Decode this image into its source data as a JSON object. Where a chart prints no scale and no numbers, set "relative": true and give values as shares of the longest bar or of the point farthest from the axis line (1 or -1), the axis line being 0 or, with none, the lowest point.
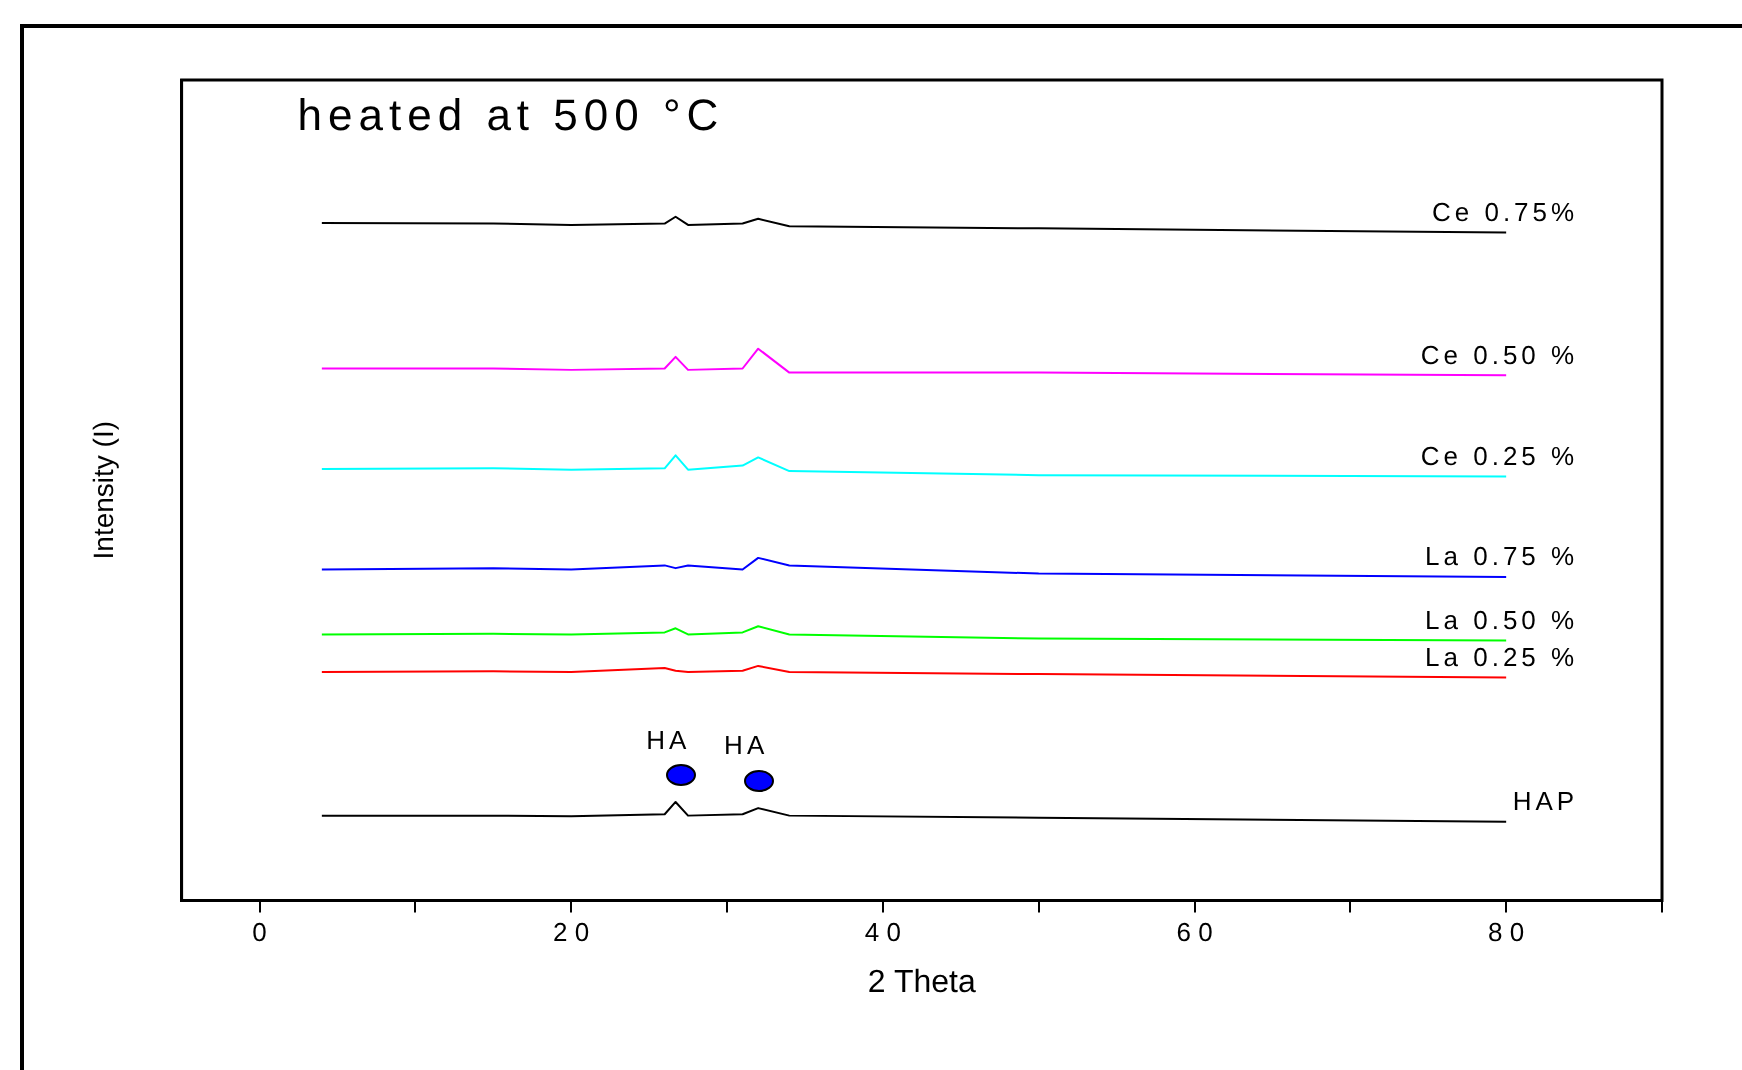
{
  "chart_data": {
    "type": "line",
    "title": "heated at 500 °C",
    "xlabel": "2 Theta",
    "ylabel": "Intensity (I)",
    "relative": true,
    "grid": false,
    "legend": false,
    "marker": "none",
    "line_style": "solid",
    "xlim": [
      -5,
      90
    ],
    "xticks": [
      0,
      {
        "value": 10,
        "label": null
      },
      20,
      {
        "value": 30,
        "label": null
      },
      40,
      {
        "value": 50,
        "label": null
      },
      60,
      {
        "value": 70,
        "label": null
      },
      80,
      {
        "value": 90,
        "label": null
      }
    ],
    "x": [
      4,
      15,
      20,
      26,
      26.7,
      27.5,
      31,
      32,
      34,
      50,
      80
    ],
    "series": [
      {
        "name": "Ce 0.75%",
        "color": "#000000",
        "values": [
          0.991,
          0.99,
          0.988,
          0.99,
          1.0,
          0.988,
          0.99,
          0.997,
          0.986,
          0.983,
          0.977
        ]
      },
      {
        "name": "Ce 0.50 %",
        "color": "#ff00ff",
        "values": [
          0.778,
          0.778,
          0.776,
          0.778,
          0.795,
          0.776,
          0.778,
          0.807,
          0.772,
          0.772,
          0.768
        ]
      },
      {
        "name": "Ce 0.25 %",
        "color": "#00ffff",
        "values": [
          0.631,
          0.632,
          0.63,
          0.632,
          0.651,
          0.63,
          0.636,
          0.648,
          0.628,
          0.622,
          0.62
        ]
      },
      {
        "name": "La 0.75 %",
        "color": "#0000ff",
        "values": [
          0.484,
          0.486,
          0.484,
          0.49,
          0.486,
          0.49,
          0.484,
          0.501,
          0.49,
          0.478,
          0.473
        ]
      },
      {
        "name": "La 0.50 %",
        "color": "#00ff00",
        "values": [
          0.389,
          0.39,
          0.389,
          0.392,
          0.398,
          0.389,
          0.392,
          0.401,
          0.389,
          0.383,
          0.38
        ]
      },
      {
        "name": "La 0.25 %",
        "color": "#ff0000",
        "values": [
          0.334,
          0.335,
          0.334,
          0.34,
          0.336,
          0.334,
          0.336,
          0.343,
          0.334,
          0.331,
          0.326
        ]
      },
      {
        "name": "HAP",
        "color": "#000000",
        "values": [
          0.124,
          0.124,
          0.123,
          0.126,
          0.144,
          0.124,
          0.126,
          0.135,
          0.124,
          0.121,
          0.115
        ]
      }
    ],
    "annotations": [
      {
        "text": "HA",
        "x": 27,
        "y": 0.184
      },
      {
        "text": "HA",
        "x": 32,
        "y": 0.176
      }
    ]
  }
}
